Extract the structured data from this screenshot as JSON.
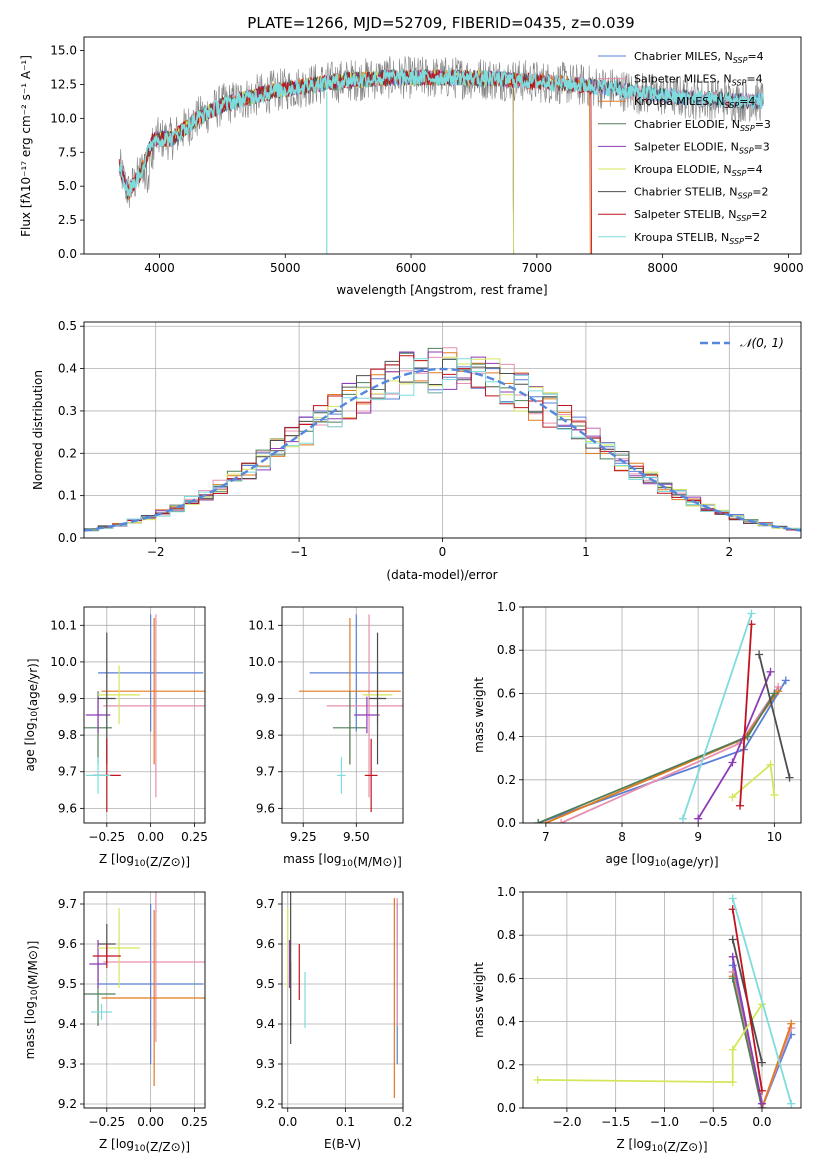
{
  "figure_title": "PLATE=1266, MJD=52709, FIBERID=0435, z=0.039",
  "colors": {
    "Chabrier MILES": "#5a7fd6",
    "Salpeter MILES": "#e68fb0",
    "Kroupa MILES": "#e07b20",
    "Chabrier ELODIE": "#4f7f5a",
    "Salpeter ELODIE": "#8e3bb5",
    "Kroupa ELODIE": "#d5e65a",
    "Chabrier STELIB": "#4d4d4d",
    "Salpeter STELIB": "#c0141f",
    "Kroupa STELIB": "#7fdcdc",
    "data": "#808080",
    "normal": "#5588dd"
  },
  "chart_data": [
    {
      "id": "spectrum",
      "type": "line",
      "title": "PLATE=1266, MJD=52709, FIBERID=0435, z=0.039",
      "xlabel": "wavelength [Angstrom, rest frame]",
      "ylabel": "Flux [fλ10⁻¹⁷ erg cm⁻² s⁻¹ A⁻¹]",
      "xlim": [
        3400,
        9100
      ],
      "ylim": [
        0,
        16
      ],
      "xticks": [
        4000,
        5000,
        6000,
        7000,
        8000,
        9000
      ],
      "yticks": [
        0.0,
        2.5,
        5.0,
        7.5,
        10.0,
        12.5,
        15.0
      ],
      "legend_position": "top-right",
      "legend": [
        {
          "main": "Chabrier MILES, N",
          "sub": "SSP",
          "tail": "=4"
        },
        {
          "main": "Salpeter MILES, N",
          "sub": "SSP",
          "tail": "=4"
        },
        {
          "main": "Kroupa MILES, N",
          "sub": "SSP",
          "tail": "=4"
        },
        {
          "main": "Chabrier ELODIE, N",
          "sub": "SSP",
          "tail": "=3"
        },
        {
          "main": "Salpeter ELODIE, N",
          "sub": "SSP",
          "tail": "=3"
        },
        {
          "main": "Kroupa ELODIE, N",
          "sub": "SSP",
          "tail": "=4"
        },
        {
          "main": "Chabrier STELIB, N",
          "sub": "SSP",
          "tail": "=2"
        },
        {
          "main": "Salpeter STELIB, N",
          "sub": "SSP",
          "tail": "=2"
        },
        {
          "main": "Kroupa STELIB, N",
          "sub": "SSP",
          "tail": "=2"
        }
      ],
      "continuum": {
        "x": [
          3680,
          3750,
          3850,
          3950,
          4100,
          4300,
          4500,
          4700,
          4900,
          5100,
          5300,
          5500,
          5800,
          6100,
          6400,
          6700,
          7000,
          7200,
          7400,
          7600,
          7800,
          8000,
          8200,
          8400,
          8600,
          8800
        ],
        "y": [
          6.5,
          4.5,
          6.0,
          8.5,
          8.5,
          10.0,
          11.0,
          11.5,
          12.0,
          12.3,
          12.6,
          12.8,
          13.0,
          13.0,
          13.0,
          12.9,
          12.7,
          12.6,
          12.4,
          12.2,
          11.9,
          11.7,
          11.5,
          11.4,
          11.3,
          11.3
        ]
      }
    },
    {
      "id": "residuals",
      "type": "line",
      "xlabel": "(data-model)/error",
      "ylabel": "Normed distribution",
      "xlim": [
        -2.5,
        2.5
      ],
      "ylim": [
        0,
        0.51
      ],
      "xticks": [
        -2,
        -1,
        0,
        1,
        2
      ],
      "yticks": [
        0.0,
        0.1,
        0.2,
        0.3,
        0.4,
        0.5
      ],
      "grid": true,
      "legend_position": "top-right",
      "legend_label": "𝒩(0, 1)",
      "normal_curve": {
        "mean": 0,
        "sigma": 1
      }
    },
    {
      "id": "age_vs_Z",
      "type": "scatter",
      "xlabel": "Z [log10(Z/Z⊙)]",
      "ylabel": "age  [log10(age/yr)]",
      "xlim": [
        -0.38,
        0.31
      ],
      "ylim": [
        9.56,
        10.15
      ],
      "xticks": [
        -0.25,
        0.0,
        0.25
      ],
      "yticks": [
        9.6,
        9.7,
        9.8,
        9.9,
        10.0,
        10.1
      ],
      "grid": true,
      "points": [
        {
          "model": "Chabrier MILES",
          "x": 0.0,
          "y": 9.97,
          "xerr": 0.3,
          "yerr": 0.16
        },
        {
          "model": "Salpeter MILES",
          "x": 0.03,
          "y": 9.88,
          "xerr": 0.3,
          "yerr": 0.25
        },
        {
          "model": "Kroupa MILES",
          "x": 0.02,
          "y": 9.92,
          "xerr": 0.3,
          "yerr": 0.2
        },
        {
          "model": "Chabrier ELODIE",
          "x": -0.3,
          "y": 9.82,
          "xerr": 0.08,
          "yerr": 0.1
        },
        {
          "model": "Salpeter ELODIE",
          "x": -0.3,
          "y": 9.855,
          "xerr": 0.07,
          "yerr": 0.05
        },
        {
          "model": "Kroupa ELODIE",
          "x": -0.18,
          "y": 9.91,
          "xerr": 0.12,
          "yerr": 0.08
        },
        {
          "model": "Chabrier STELIB",
          "x": -0.25,
          "y": 9.9,
          "xerr": 0.05,
          "yerr": 0.18
        },
        {
          "model": "Salpeter STELIB",
          "x": -0.25,
          "y": 9.69,
          "xerr": 0.08,
          "yerr": 0.1
        },
        {
          "model": "Kroupa STELIB",
          "x": -0.3,
          "y": 9.69,
          "xerr": 0.07,
          "yerr": 0.05
        }
      ]
    },
    {
      "id": "age_vs_mass",
      "type": "scatter",
      "xlabel": "mass [log10(M/M⊙)]",
      "ylabel": "",
      "xlim": [
        9.15,
        9.72
      ],
      "ylim": [
        9.56,
        10.15
      ],
      "xticks": [
        9.25,
        9.5
      ],
      "yticks": [
        9.6,
        9.7,
        9.8,
        9.9,
        10.0,
        10.1
      ],
      "grid": true,
      "points": [
        {
          "model": "Chabrier MILES",
          "x": 9.5,
          "y": 9.97,
          "xerr": 0.22,
          "yerr": 0.16
        },
        {
          "model": "Salpeter MILES",
          "x": 9.56,
          "y": 9.88,
          "xerr": 0.2,
          "yerr": 0.25
        },
        {
          "model": "Kroupa MILES",
          "x": 9.47,
          "y": 9.92,
          "xerr": 0.24,
          "yerr": 0.2
        },
        {
          "model": "Chabrier ELODIE",
          "x": 9.47,
          "y": 9.82,
          "xerr": 0.08,
          "yerr": 0.1
        },
        {
          "model": "Salpeter ELODIE",
          "x": 9.55,
          "y": 9.855,
          "xerr": 0.06,
          "yerr": 0.05
        },
        {
          "model": "Kroupa ELODIE",
          "x": 9.6,
          "y": 9.91,
          "xerr": 0.07,
          "yerr": 0.08
        },
        {
          "model": "Chabrier STELIB",
          "x": 9.6,
          "y": 9.9,
          "xerr": 0.04,
          "yerr": 0.18
        },
        {
          "model": "Salpeter STELIB",
          "x": 9.57,
          "y": 9.69,
          "xerr": 0.03,
          "yerr": 0.1
        },
        {
          "model": "Kroupa STELIB",
          "x": 9.43,
          "y": 9.69,
          "xerr": 0.02,
          "yerr": 0.05
        }
      ]
    },
    {
      "id": "weight_vs_age",
      "type": "line",
      "xlabel": "age  [log10(age/yr)]",
      "ylabel": "mass weight",
      "xlim": [
        6.7,
        10.35
      ],
      "ylim": [
        0,
        1.0
      ],
      "xticks": [
        7,
        8,
        9,
        10
      ],
      "yticks": [
        0.0,
        0.2,
        0.4,
        0.6,
        0.8,
        1.0
      ],
      "grid": true,
      "series": [
        {
          "model": "Chabrier MILES",
          "x": [
            6.9,
            9.6,
            10.15
          ],
          "y": [
            0.0,
            0.34,
            0.66
          ]
        },
        {
          "model": "Salpeter MILES",
          "x": [
            7.2,
            9.55,
            10.05
          ],
          "y": [
            0.0,
            0.37,
            0.63
          ]
        },
        {
          "model": "Kroupa MILES",
          "x": [
            7.0,
            9.6,
            10.05
          ],
          "y": [
            0.0,
            0.39,
            0.61
          ]
        },
        {
          "model": "Chabrier ELODIE",
          "x": [
            6.9,
            9.65,
            10.0
          ],
          "y": [
            0.0,
            0.4,
            0.6
          ]
        },
        {
          "model": "Salpeter ELODIE",
          "x": [
            9.0,
            9.45,
            9.95
          ],
          "y": [
            0.02,
            0.28,
            0.7
          ]
        },
        {
          "model": "Kroupa ELODIE",
          "x": [
            9.45,
            9.95,
            10.0
          ],
          "y": [
            0.12,
            0.27,
            0.13
          ]
        },
        {
          "model": "Chabrier STELIB",
          "x": [
            9.8,
            10.2
          ],
          "y": [
            0.78,
            0.21
          ]
        },
        {
          "model": "Salpeter STELIB",
          "x": [
            9.55,
            9.7
          ],
          "y": [
            0.08,
            0.92
          ]
        },
        {
          "model": "Kroupa STELIB",
          "x": [
            8.8,
            9.7
          ],
          "y": [
            0.02,
            0.97
          ]
        }
      ]
    },
    {
      "id": "mass_vs_Z",
      "type": "scatter",
      "xlabel": "Z [log10(Z/Z⊙)]",
      "ylabel": "mass [log10(M/M⊙)]",
      "xlim": [
        -0.38,
        0.31
      ],
      "ylim": [
        9.19,
        9.73
      ],
      "xticks": [
        -0.25,
        0.0,
        0.25
      ],
      "yticks": [
        9.2,
        9.3,
        9.4,
        9.5,
        9.6,
        9.7
      ],
      "grid": true,
      "points": [
        {
          "model": "Chabrier MILES",
          "x": 0.0,
          "y": 9.5,
          "xerr": 0.3,
          "yerr": 0.2
        },
        {
          "model": "Salpeter MILES",
          "x": 0.03,
          "y": 9.555,
          "xerr": 0.3,
          "yerr": 0.2
        },
        {
          "model": "Kroupa MILES",
          "x": 0.02,
          "y": 9.465,
          "xerr": 0.3,
          "yerr": 0.22
        },
        {
          "model": "Chabrier ELODIE",
          "x": -0.3,
          "y": 9.475,
          "xerr": 0.1,
          "yerr": 0.08
        },
        {
          "model": "Salpeter ELODIE",
          "x": -0.3,
          "y": 9.55,
          "xerr": 0.05,
          "yerr": 0.06
        },
        {
          "model": "Kroupa ELODIE",
          "x": -0.18,
          "y": 9.59,
          "xerr": 0.12,
          "yerr": 0.1
        },
        {
          "model": "Chabrier STELIB",
          "x": -0.25,
          "y": 9.6,
          "xerr": 0.05,
          "yerr": 0.05
        },
        {
          "model": "Salpeter STELIB",
          "x": -0.25,
          "y": 9.57,
          "xerr": 0.08,
          "yerr": 0.03
        },
        {
          "model": "Kroupa STELIB",
          "x": -0.28,
          "y": 9.43,
          "xerr": 0.06,
          "yerr": 0.02
        }
      ]
    },
    {
      "id": "mass_vs_ebv",
      "type": "scatter",
      "xlabel": "E(B-V)",
      "ylabel": "",
      "xlim": [
        -0.01,
        0.2
      ],
      "ylim": [
        9.19,
        9.73
      ],
      "xticks": [
        0.0,
        0.1,
        0.2
      ],
      "yticks": [
        9.2,
        9.3,
        9.4,
        9.5,
        9.6,
        9.7
      ],
      "grid": true,
      "points": [
        {
          "model": "Chabrier MILES",
          "x": 0.19,
          "y": 9.5,
          "yerr": 0.2
        },
        {
          "model": "Salpeter MILES",
          "x": 0.19,
          "y": 9.555,
          "yerr": 0.16
        },
        {
          "model": "Kroupa MILES",
          "x": 0.185,
          "y": 9.465,
          "yerr": 0.25
        },
        {
          "model": "Chabrier ELODIE",
          "x": 0.005,
          "y": 9.475,
          "yerr": 0.08
        },
        {
          "model": "Salpeter ELODIE",
          "x": 0.003,
          "y": 9.55,
          "yerr": 0.06
        },
        {
          "model": "Kroupa ELODIE",
          "x": 0.0,
          "y": 9.59,
          "yerr": 0.1
        },
        {
          "model": "Chabrier STELIB",
          "x": 0.005,
          "y": 9.6,
          "yerr": 0.25
        },
        {
          "model": "Salpeter STELIB",
          "x": 0.02,
          "y": 9.53,
          "yerr": 0.07
        },
        {
          "model": "Kroupa STELIB",
          "x": 0.03,
          "y": 9.46,
          "yerr": 0.07
        }
      ]
    },
    {
      "id": "weight_vs_Z",
      "type": "line",
      "xlabel": "Z [log10(Z/Z⊙)]",
      "ylabel": "mass weight",
      "xlim": [
        -2.45,
        0.4
      ],
      "ylim": [
        0,
        1.0
      ],
      "xticks": [
        -2.0,
        -1.5,
        -1.0,
        -0.5,
        0.0
      ],
      "yticks": [
        0.0,
        0.2,
        0.4,
        0.6,
        0.8,
        1.0
      ],
      "grid": true,
      "series": [
        {
          "model": "Chabrier MILES",
          "x": [
            -0.3,
            0.0,
            0.3
          ],
          "y": [
            0.66,
            0.0,
            0.34
          ]
        },
        {
          "model": "Salpeter MILES",
          "x": [
            -0.3,
            0.0,
            0.3
          ],
          "y": [
            0.63,
            0.0,
            0.37
          ]
        },
        {
          "model": "Kroupa MILES",
          "x": [
            -0.3,
            0.0,
            0.3
          ],
          "y": [
            0.61,
            0.0,
            0.39
          ]
        },
        {
          "model": "Chabrier ELODIE",
          "x": [
            -0.3,
            0.0
          ],
          "y": [
            0.6,
            0.0
          ]
        },
        {
          "model": "Salpeter ELODIE",
          "x": [
            -0.3,
            0.0
          ],
          "y": [
            0.7,
            0.02
          ]
        },
        {
          "model": "Kroupa ELODIE",
          "x": [
            -2.3,
            -0.3,
            -0.3,
            0.0
          ],
          "y": [
            0.13,
            0.12,
            0.27,
            0.48
          ]
        },
        {
          "model": "Chabrier STELIB",
          "x": [
            -0.3,
            0.0
          ],
          "y": [
            0.78,
            0.21
          ]
        },
        {
          "model": "Salpeter STELIB",
          "x": [
            -0.3,
            0.0
          ],
          "y": [
            0.92,
            0.08
          ]
        },
        {
          "model": "Kroupa STELIB",
          "x": [
            -0.3,
            0.3
          ],
          "y": [
            0.97,
            0.02
          ]
        }
      ]
    }
  ]
}
